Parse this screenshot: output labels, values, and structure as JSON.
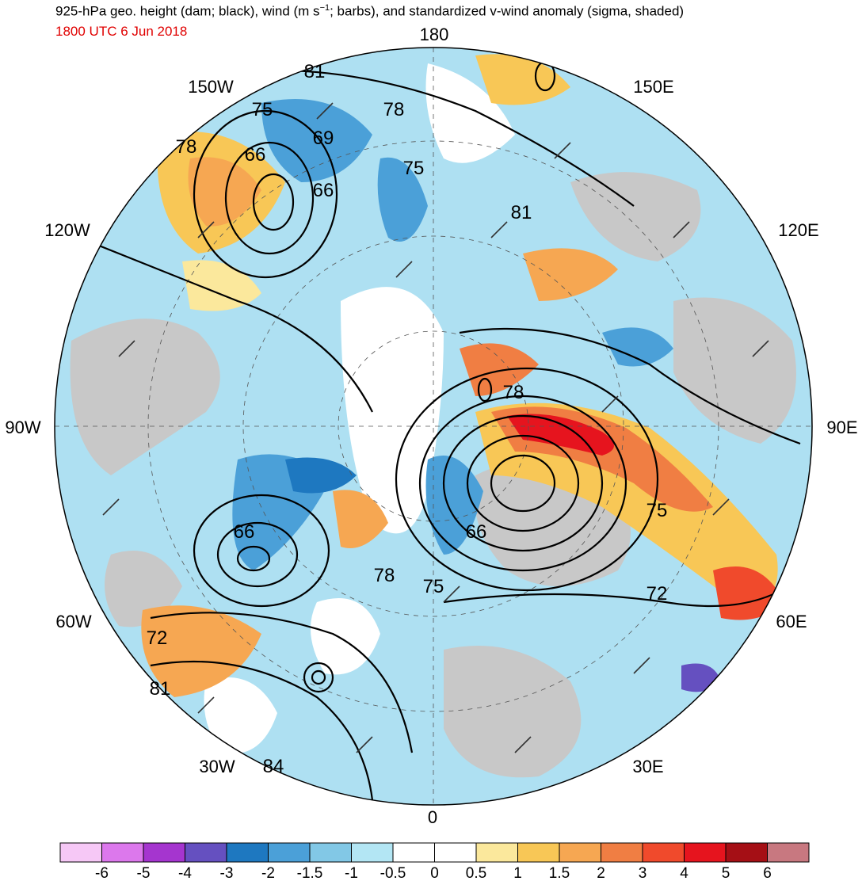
{
  "header": {
    "title_pre": "925-hPa geo. height (dam; black), wind (m s",
    "title_sup": "−1",
    "title_post": "; barbs), and standardized v-wind anomaly (sigma, shaded)",
    "valid_time": "1800 UTC 6 Jun 2018"
  },
  "map": {
    "projection": "north-polar-stereographic",
    "longitude_labels": [
      "180",
      "150E",
      "120E",
      "90E",
      "60E",
      "30E",
      "0",
      "30W",
      "60W",
      "90W",
      "120W",
      "150W"
    ],
    "height_contour_labels": [
      "81",
      "75",
      "78",
      "78",
      "69",
      "66",
      "66",
      "75",
      "81",
      "78",
      "66",
      "75",
      "72",
      "66",
      "78",
      "75",
      "72",
      "81",
      "84"
    ]
  },
  "colorbar": {
    "labels": [
      "-6",
      "-5",
      "-4",
      "-3",
      "-2",
      "-1.5",
      "-1",
      "-0.5",
      "0",
      "0.5",
      "1",
      "1.5",
      "2",
      "3",
      "4",
      "5",
      "6"
    ],
    "colors": [
      "#f6c8f6",
      "#dc78ec",
      "#a535cf",
      "#6550c0",
      "#1e78c0",
      "#4ba0d8",
      "#82c8e6",
      "#b3e6f4",
      "#ffffff",
      "#ffffff",
      "#fbe89c",
      "#f8c756",
      "#f6a752",
      "#f07e43",
      "#f04a2c",
      "#e6141e",
      "#a50f15",
      "#c87880"
    ]
  }
}
